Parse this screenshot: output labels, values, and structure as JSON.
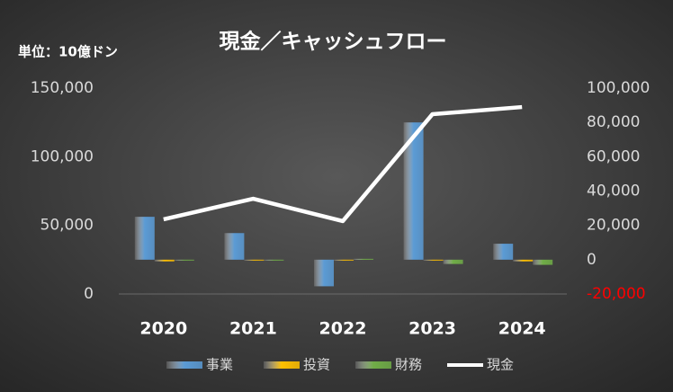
{
  "chart_data": {
    "type": "bar-line",
    "title": "現金／キャッシュフロー",
    "y_axis_label": "単位：10億ドン",
    "categories": [
      "2020",
      "2021",
      "2022",
      "2023",
      "2024"
    ],
    "series": [
      {
        "name": "事業",
        "type": "bar",
        "axis": "y2",
        "color": "#5b9bd5",
        "values": [
          25000,
          15500,
          -15500,
          80000,
          9300
        ]
      },
      {
        "name": "投資",
        "type": "bar",
        "axis": "y2",
        "color": "#ffc000",
        "values": [
          -1000,
          -500,
          -500,
          -500,
          -1000
        ]
      },
      {
        "name": "財務",
        "type": "bar",
        "axis": "y2",
        "color": "#70ad47",
        "values": [
          -500,
          0,
          500,
          -2500,
          -3000
        ]
      },
      {
        "name": "現金",
        "type": "line",
        "color": "#ffffff",
        "values": [
          54400,
          69400,
          53100,
          131000,
          136200
        ]
      }
    ],
    "ylim": [
      0,
      150000
    ],
    "yticks": [
      0,
      {
        "value": 50000,
        "label": "50,000"
      },
      {
        "value": 100000,
        "label": "100,000"
      },
      {
        "value": 150000,
        "label": "150,000"
      }
    ],
    "y2lim": [
      -20000,
      100000
    ],
    "y2ticks": [
      {
        "value": -20000,
        "label": "-20,000"
      },
      0,
      {
        "value": 20000,
        "label": "20,000"
      },
      {
        "value": 40000,
        "label": "40,000"
      },
      {
        "value": 60000,
        "label": "60,000"
      },
      {
        "value": 80000,
        "label": "80,000"
      },
      {
        "value": 100000,
        "label": "100,000"
      }
    ],
    "negative_tick_color": "#ff0000",
    "grid": false,
    "legend": "bottom"
  }
}
